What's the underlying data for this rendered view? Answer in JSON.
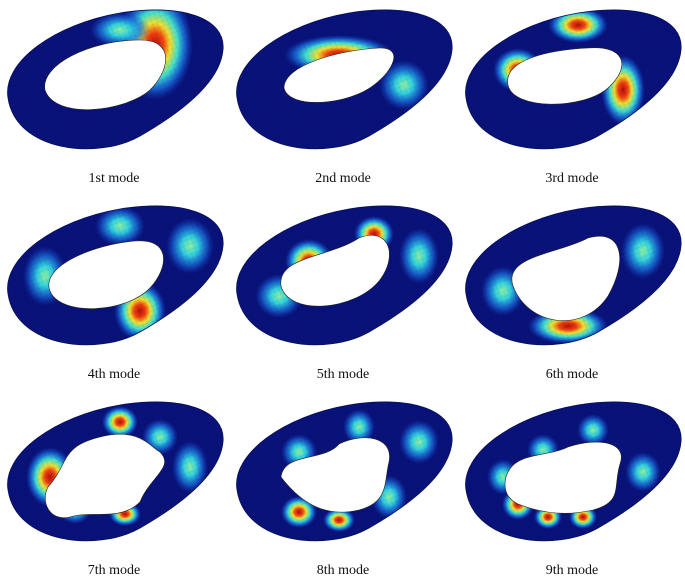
{
  "panels": [
    {
      "caption": "1st mode"
    },
    {
      "caption": "2nd mode"
    },
    {
      "caption": "3rd mode"
    },
    {
      "caption": "4th mode"
    },
    {
      "caption": "5th mode"
    },
    {
      "caption": "6th mode"
    },
    {
      "caption": "7th mode"
    },
    {
      "caption": "8th mode"
    },
    {
      "caption": "9th mode"
    }
  ]
}
